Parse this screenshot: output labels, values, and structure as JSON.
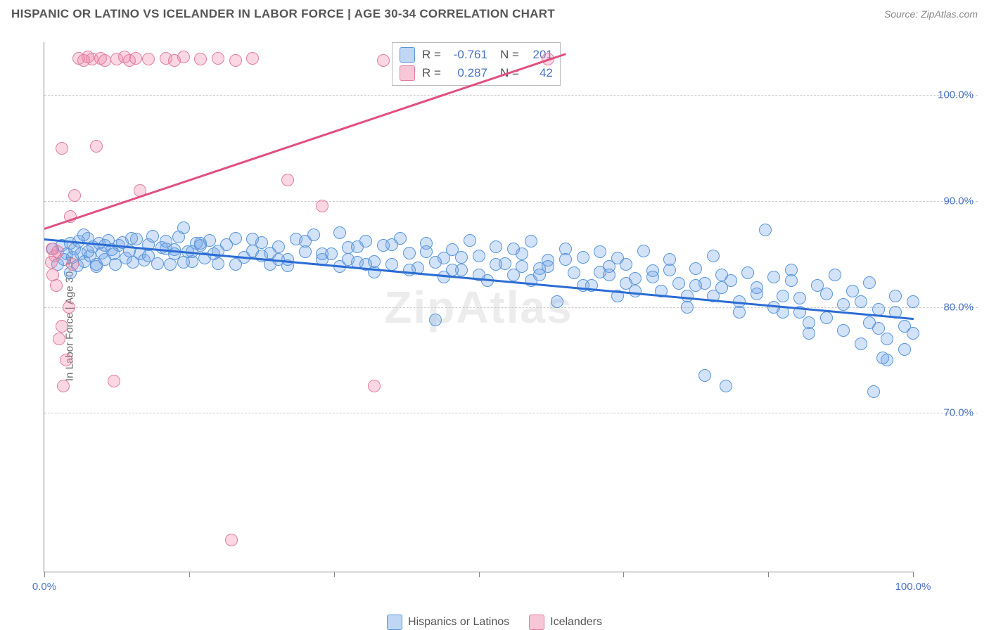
{
  "title": "HISPANIC OR LATINO VS ICELANDER IN LABOR FORCE | AGE 30-34 CORRELATION CHART",
  "source": "Source: ZipAtlas.com",
  "ylabel": "In Labor Force | Age 30-34",
  "watermark": "ZipAtlas",
  "chart": {
    "type": "scatter",
    "background_color": "#ffffff",
    "grid_color": "#cccccc",
    "axis_color": "#888888",
    "label_fontsize": 15,
    "title_fontsize": 17,
    "tick_label_color": "#4a72c4",
    "xlim": [
      0,
      100
    ],
    "ylim": [
      55,
      105
    ],
    "y_ticks": [
      70,
      80,
      90,
      100
    ],
    "y_tick_labels": [
      "70.0%",
      "80.0%",
      "90.0%",
      "100.0%"
    ],
    "x_ticks": [
      0,
      16.67,
      33.33,
      50,
      66.67,
      83.33,
      100
    ],
    "x_tick_labels": [
      "0.0%",
      "",
      "",
      "",
      "",
      "",
      "100.0%"
    ],
    "marker_radius": 9,
    "marker_stroke_width": 1.4,
    "marker_fill_opacity": 0.32,
    "line_width": 2.5,
    "series": [
      {
        "name": "Hispanics or Latinos",
        "color_fill": "rgba(114,164,232,0.32)",
        "color_stroke": "#5a96d8",
        "trendline_color": "#2b6cd4",
        "trend": {
          "x0": 0,
          "y0": 86.5,
          "x1": 100,
          "y1": 79.0
        },
        "R": "-0.761",
        "N": "201",
        "points": [
          [
            1,
            85.5
          ],
          [
            1.5,
            84.0
          ],
          [
            2,
            85.8
          ],
          [
            2.3,
            84.5
          ],
          [
            2.6,
            85.0
          ],
          [
            3,
            86.0
          ],
          [
            3.2,
            84.7
          ],
          [
            3.5,
            85.5
          ],
          [
            3.8,
            83.9
          ],
          [
            4,
            86.2
          ],
          [
            4.2,
            85.0
          ],
          [
            4.6,
            84.3
          ],
          [
            5,
            86.5
          ],
          [
            5.3,
            84.8
          ],
          [
            5.6,
            85.7
          ],
          [
            6,
            83.8
          ],
          [
            6.3,
            86.0
          ],
          [
            6.6,
            85.1
          ],
          [
            7,
            84.5
          ],
          [
            7.4,
            86.3
          ],
          [
            7.8,
            85.4
          ],
          [
            8.2,
            84.0
          ],
          [
            8.6,
            85.8
          ],
          [
            9,
            86.1
          ],
          [
            9.4,
            84.6
          ],
          [
            9.8,
            85.3
          ],
          [
            10.2,
            84.2
          ],
          [
            10.6,
            86.4
          ],
          [
            11,
            85.0
          ],
          [
            11.5,
            84.4
          ],
          [
            12,
            85.9
          ],
          [
            12.5,
            86.7
          ],
          [
            13,
            84.1
          ],
          [
            13.5,
            85.6
          ],
          [
            14,
            86.2
          ],
          [
            14.5,
            84.0
          ],
          [
            15,
            85.4
          ],
          [
            15.5,
            86.6
          ],
          [
            16,
            87.5
          ],
          [
            16.5,
            85.2
          ],
          [
            17,
            84.3
          ],
          [
            17.5,
            86.0
          ],
          [
            18,
            85.8
          ],
          [
            18.5,
            84.6
          ],
          [
            19,
            86.3
          ],
          [
            19.5,
            85.0
          ],
          [
            20,
            84.1
          ],
          [
            21,
            85.9
          ],
          [
            22,
            86.5
          ],
          [
            23,
            84.7
          ],
          [
            24,
            85.3
          ],
          [
            25,
            86.1
          ],
          [
            26,
            84.0
          ],
          [
            27,
            85.7
          ],
          [
            28,
            83.9
          ],
          [
            29,
            86.4
          ],
          [
            30,
            85.2
          ],
          [
            31,
            86.8
          ],
          [
            32,
            84.5
          ],
          [
            33,
            85.0
          ],
          [
            34,
            87.0
          ],
          [
            35,
            85.6
          ],
          [
            36,
            84.2
          ],
          [
            37,
            86.2
          ],
          [
            38,
            83.3
          ],
          [
            39,
            85.8
          ],
          [
            40,
            84.0
          ],
          [
            41,
            86.5
          ],
          [
            42,
            85.1
          ],
          [
            43,
            83.7
          ],
          [
            44,
            86.0
          ],
          [
            45,
            78.8
          ],
          [
            46,
            84.6
          ],
          [
            47,
            85.4
          ],
          [
            48,
            83.5
          ],
          [
            49,
            86.3
          ],
          [
            50,
            84.8
          ],
          [
            51,
            82.5
          ],
          [
            52,
            85.7
          ],
          [
            53,
            84.1
          ],
          [
            54,
            83.0
          ],
          [
            55,
            85.0
          ],
          [
            56,
            86.2
          ],
          [
            57,
            83.6
          ],
          [
            58,
            84.4
          ],
          [
            59,
            80.5
          ],
          [
            60,
            85.5
          ],
          [
            61,
            83.2
          ],
          [
            62,
            84.7
          ],
          [
            63,
            82.0
          ],
          [
            64,
            85.2
          ],
          [
            65,
            83.8
          ],
          [
            66,
            81.0
          ],
          [
            67,
            84.0
          ],
          [
            68,
            82.7
          ],
          [
            69,
            85.3
          ],
          [
            70,
            83.4
          ],
          [
            71,
            81.5
          ],
          [
            72,
            84.5
          ],
          [
            73,
            82.2
          ],
          [
            74,
            80.0
          ],
          [
            75,
            83.6
          ],
          [
            76,
            73.5
          ],
          [
            77,
            84.8
          ],
          [
            78,
            81.8
          ],
          [
            78.5,
            72.5
          ],
          [
            79,
            82.5
          ],
          [
            80,
            80.5
          ],
          [
            81,
            83.2
          ],
          [
            82,
            81.2
          ],
          [
            83,
            87.3
          ],
          [
            84,
            82.8
          ],
          [
            85,
            79.5
          ],
          [
            86,
            83.5
          ],
          [
            87,
            80.8
          ],
          [
            88,
            77.5
          ],
          [
            89,
            82.0
          ],
          [
            90,
            79.0
          ],
          [
            91,
            83.0
          ],
          [
            92,
            80.2
          ],
          [
            93,
            81.5
          ],
          [
            94,
            76.5
          ],
          [
            95,
            82.3
          ],
          [
            95.5,
            72.0
          ],
          [
            96,
            79.8
          ],
          [
            97,
            75.0
          ],
          [
            98,
            81.0
          ],
          [
            99,
            78.2
          ],
          [
            100,
            80.5
          ],
          [
            3,
            83.2
          ],
          [
            4.5,
            86.8
          ],
          [
            6,
            84.0
          ],
          [
            8,
            85.0
          ],
          [
            10,
            86.5
          ],
          [
            12,
            84.8
          ],
          [
            14,
            85.5
          ],
          [
            16,
            84.2
          ],
          [
            18,
            86.0
          ],
          [
            20,
            85.3
          ],
          [
            22,
            84.0
          ],
          [
            24,
            86.4
          ],
          [
            26,
            85.1
          ],
          [
            28,
            84.5
          ],
          [
            30,
            86.2
          ],
          [
            32,
            85.0
          ],
          [
            34,
            83.8
          ],
          [
            36,
            85.7
          ],
          [
            38,
            84.3
          ],
          [
            40,
            85.9
          ],
          [
            42,
            83.5
          ],
          [
            44,
            85.2
          ],
          [
            46,
            82.8
          ],
          [
            48,
            84.7
          ],
          [
            50,
            83.0
          ],
          [
            52,
            84.0
          ],
          [
            54,
            85.5
          ],
          [
            56,
            82.5
          ],
          [
            58,
            83.8
          ],
          [
            60,
            84.5
          ],
          [
            62,
            82.0
          ],
          [
            64,
            83.3
          ],
          [
            66,
            84.6
          ],
          [
            68,
            81.5
          ],
          [
            70,
            82.8
          ],
          [
            72,
            83.5
          ],
          [
            74,
            81.0
          ],
          [
            76,
            82.2
          ],
          [
            78,
            83.0
          ],
          [
            80,
            79.5
          ],
          [
            82,
            81.8
          ],
          [
            84,
            80.0
          ],
          [
            86,
            82.5
          ],
          [
            88,
            78.5
          ],
          [
            90,
            81.2
          ],
          [
            92,
            77.8
          ],
          [
            94,
            80.5
          ],
          [
            96,
            78.0
          ],
          [
            96.5,
            75.2
          ],
          [
            98,
            79.5
          ],
          [
            99,
            76.0
          ],
          [
            100,
            77.5
          ],
          [
            5,
            85.2
          ],
          [
            15,
            85.0
          ],
          [
            25,
            84.8
          ],
          [
            35,
            84.5
          ],
          [
            45,
            84.2
          ],
          [
            55,
            83.8
          ],
          [
            65,
            83.0
          ],
          [
            75,
            82.0
          ],
          [
            85,
            81.0
          ],
          [
            95,
            78.5
          ],
          [
            7,
            85.8
          ],
          [
            17,
            85.2
          ],
          [
            27,
            84.5
          ],
          [
            37,
            84.0
          ],
          [
            47,
            83.5
          ],
          [
            57,
            83.0
          ],
          [
            67,
            82.2
          ],
          [
            77,
            81.0
          ],
          [
            87,
            79.5
          ],
          [
            97,
            77.0
          ]
        ]
      },
      {
        "name": "Icelanders",
        "color_fill": "rgba(238,130,168,0.32)",
        "color_stroke": "#e17ea0",
        "trendline_color": "#e14f7e",
        "trend": {
          "x0": 0,
          "y0": 87.5,
          "x1": 60,
          "y1": 104.0
        },
        "R": "0.287",
        "N": "42",
        "points": [
          [
            0.8,
            84.2
          ],
          [
            0.9,
            85.5
          ],
          [
            1.0,
            83.0
          ],
          [
            1.2,
            84.8
          ],
          [
            1.4,
            82.0
          ],
          [
            1.5,
            85.2
          ],
          [
            1.7,
            77.0
          ],
          [
            2.0,
            78.2
          ],
          [
            2.0,
            95.0
          ],
          [
            2.2,
            72.5
          ],
          [
            2.5,
            75.0
          ],
          [
            2.8,
            80.0
          ],
          [
            3.0,
            88.5
          ],
          [
            3.2,
            84.0
          ],
          [
            3.5,
            90.5
          ],
          [
            4.0,
            103.5
          ],
          [
            4.5,
            103.3
          ],
          [
            5.0,
            103.6
          ],
          [
            5.5,
            103.4
          ],
          [
            6.0,
            95.2
          ],
          [
            6.5,
            103.5
          ],
          [
            7.0,
            103.3
          ],
          [
            8.0,
            73.0
          ],
          [
            8.3,
            103.4
          ],
          [
            9.2,
            103.6
          ],
          [
            9.8,
            103.3
          ],
          [
            10.5,
            103.5
          ],
          [
            11.0,
            91.0
          ],
          [
            12.0,
            103.4
          ],
          [
            14.0,
            103.5
          ],
          [
            15.0,
            103.3
          ],
          [
            16.0,
            103.6
          ],
          [
            18.0,
            103.4
          ],
          [
            20.0,
            103.5
          ],
          [
            21.5,
            58.0
          ],
          [
            22.0,
            103.3
          ],
          [
            24.0,
            103.5
          ],
          [
            28.0,
            92.0
          ],
          [
            32.0,
            89.5
          ],
          [
            38.0,
            72.5
          ],
          [
            39.0,
            103.3
          ],
          [
            58.0,
            103.4
          ]
        ]
      }
    ]
  },
  "legend": {
    "items": [
      {
        "label": "Hispanics or Latinos",
        "fill": "rgba(114,164,232,0.45)",
        "stroke": "#5a96d8"
      },
      {
        "label": "Icelanders",
        "fill": "rgba(238,130,168,0.45)",
        "stroke": "#e17ea0"
      }
    ]
  },
  "stats_box": {
    "rows": [
      {
        "fill": "rgba(114,164,232,0.45)",
        "stroke": "#5a96d8",
        "R": "-0.761",
        "N": "201"
      },
      {
        "fill": "rgba(238,130,168,0.45)",
        "stroke": "#e17ea0",
        "R": "0.287",
        "N": "42"
      }
    ]
  }
}
